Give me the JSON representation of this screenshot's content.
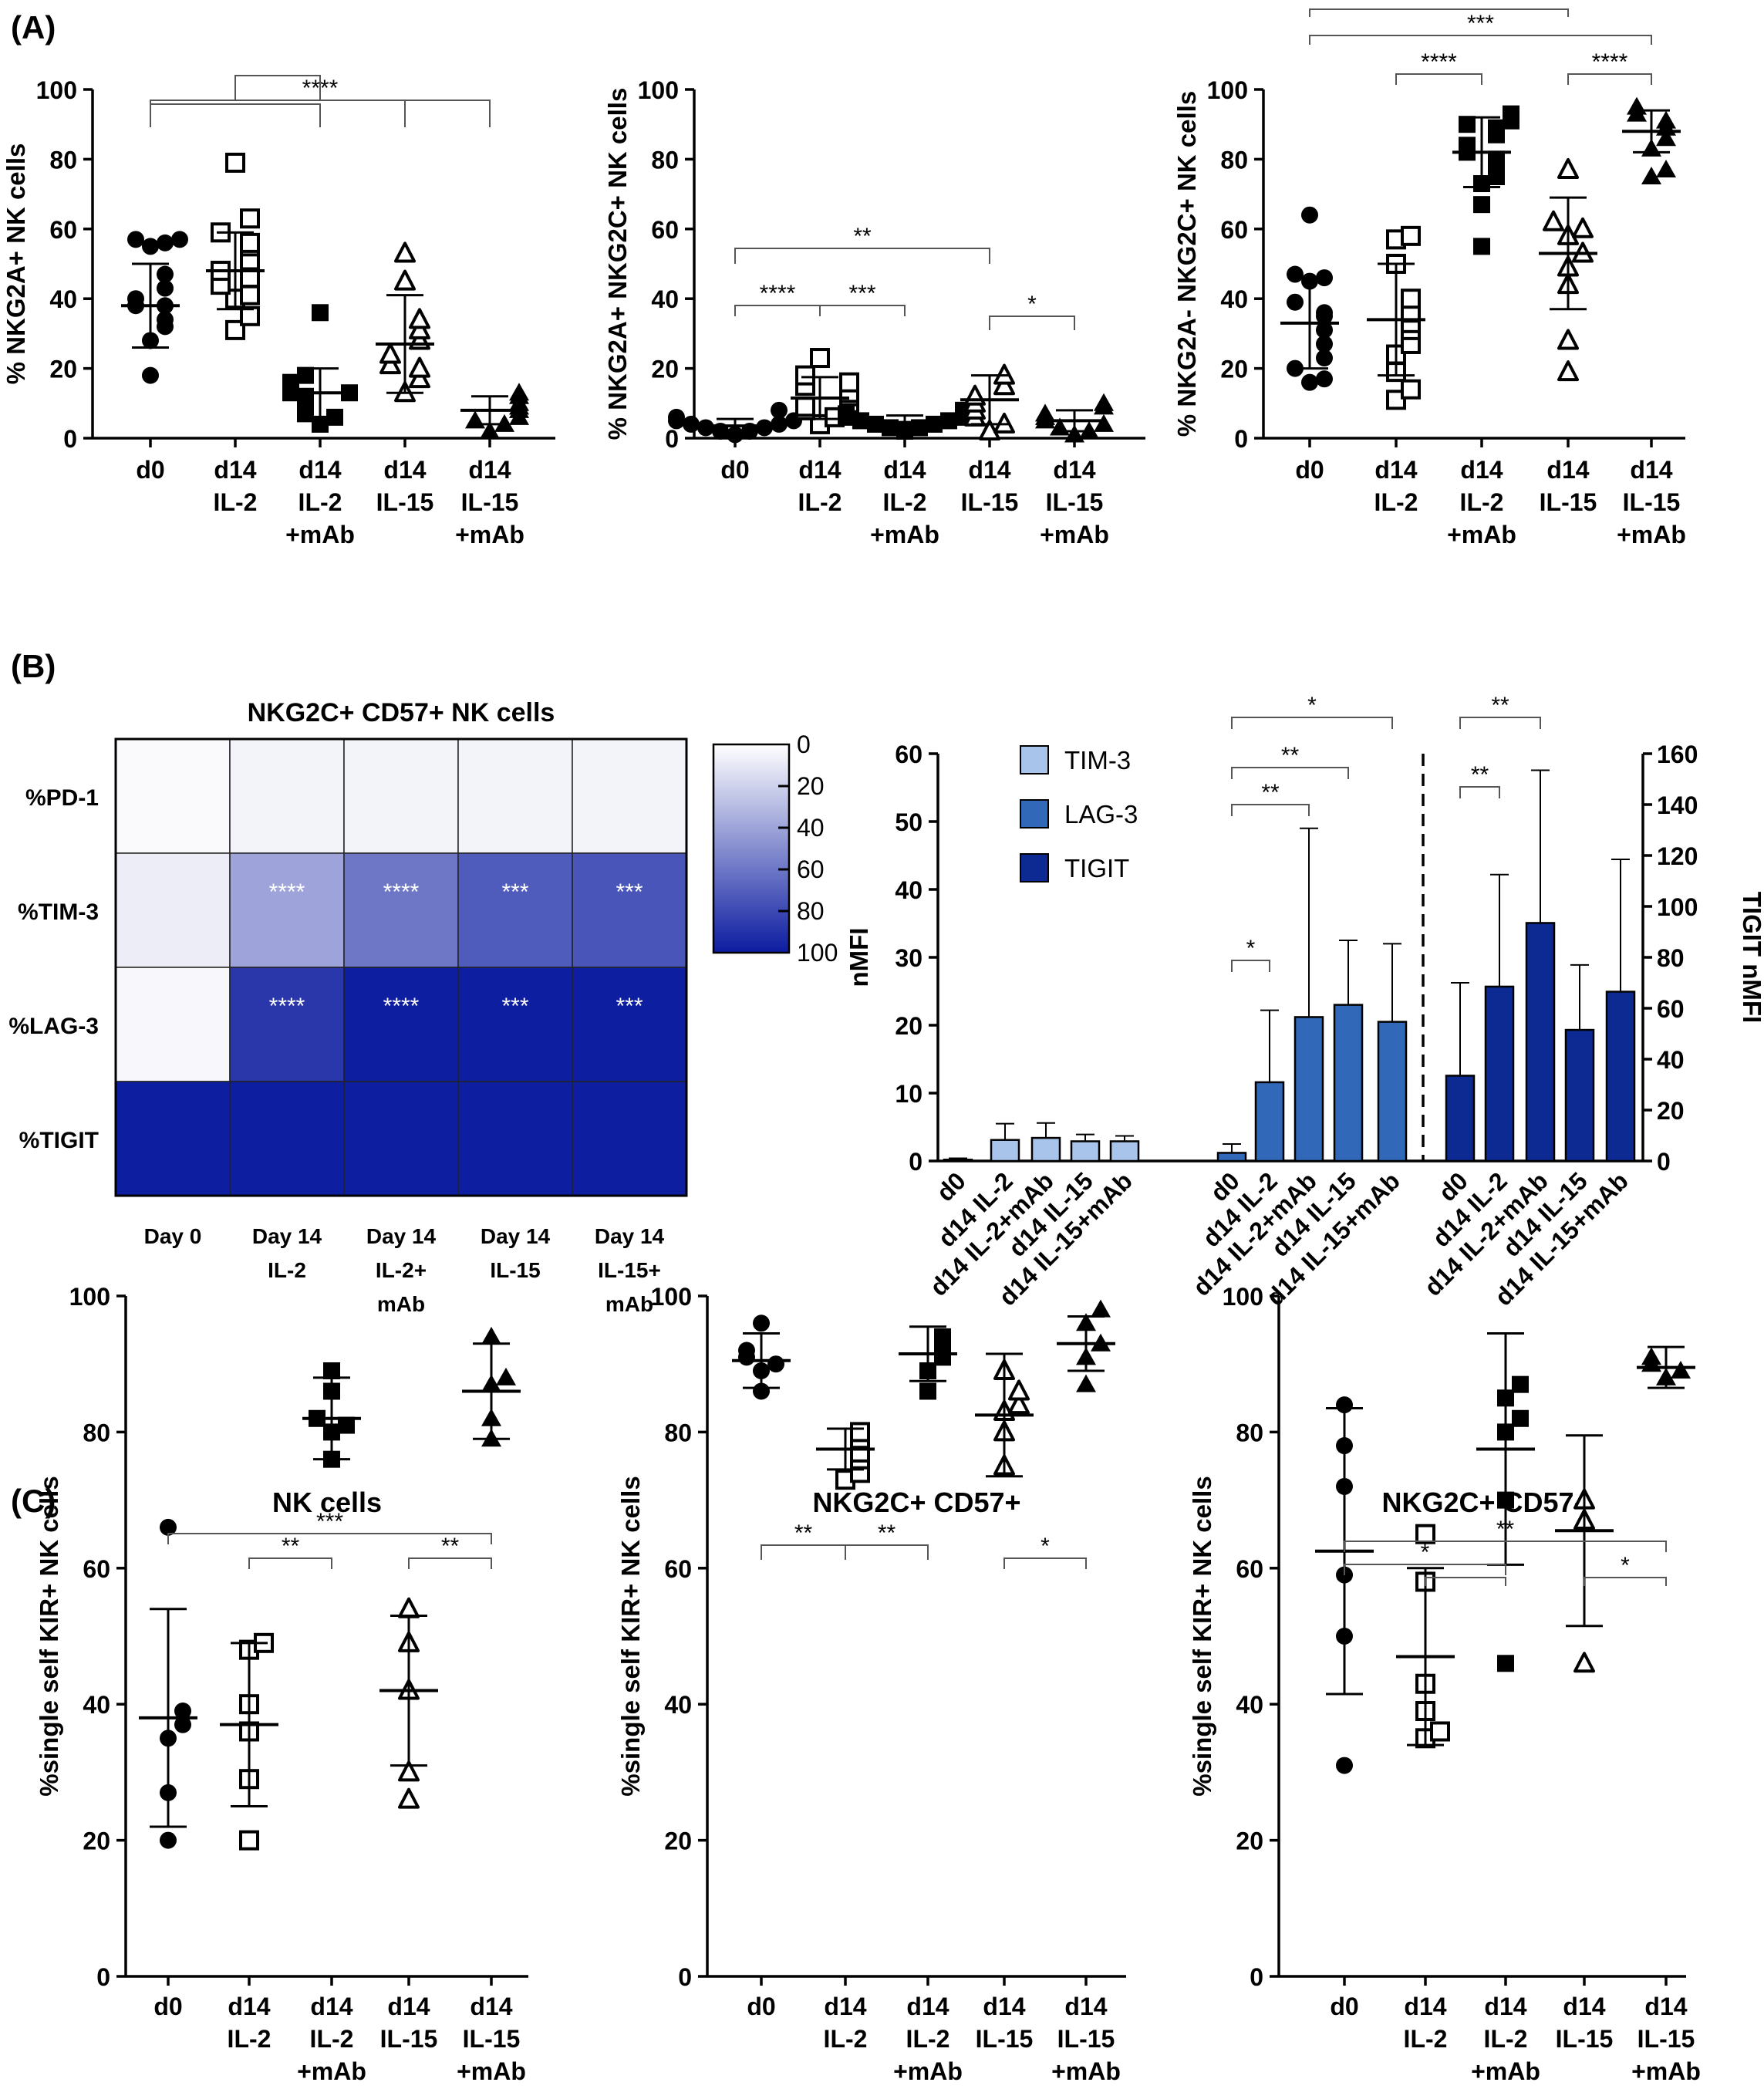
{
  "colors": {
    "tim3": "#A9C4EA",
    "lag3": "#3268B8",
    "tigit": "#0C2A92",
    "heat_max": "#0C1CA0",
    "heat_min": "#FFFFFF"
  },
  "panel_labels": [
    "(A)",
    "(B)",
    "(C)"
  ],
  "chart_data": [
    {
      "id": "A1",
      "type": "scatter",
      "title": "",
      "ylabel": "% NKG2A+ NK cells",
      "ylim": [
        0,
        100
      ],
      "yticks": [
        "0",
        "20",
        "40",
        "60",
        "80",
        "100"
      ],
      "categories": [
        [
          "d0"
        ],
        [
          "d14",
          "IL-2"
        ],
        [
          "d14",
          "IL-2",
          "+mAb"
        ],
        [
          "d14",
          "IL-15"
        ],
        [
          "d14",
          "IL-15",
          "+mAb"
        ]
      ],
      "markers": [
        "filled-circle",
        "open-square",
        "filled-square",
        "open-triangle",
        "filled-triangle"
      ],
      "points": [
        [
          18,
          28,
          32,
          34,
          38,
          38,
          40,
          43,
          47,
          55,
          56,
          57,
          57
        ],
        [
          31,
          35,
          40,
          41,
          44,
          46,
          48,
          51,
          55,
          56,
          59,
          63,
          79
        ],
        [
          4,
          6,
          7,
          9,
          11,
          12,
          13,
          13,
          14,
          16,
          18,
          36
        ],
        [
          13,
          17,
          20,
          21,
          24,
          28,
          31,
          34,
          45,
          53
        ],
        [
          2,
          4,
          5,
          6,
          8,
          9,
          10,
          12,
          13
        ]
      ],
      "means": [
        38,
        48,
        13,
        27,
        8
      ],
      "sd": [
        12,
        11,
        7,
        14,
        4
      ],
      "significance": [
        {
          "from": 0,
          "to": 4,
          "label": "****"
        },
        {
          "from": 1,
          "to": 2,
          "label": ""
        },
        {
          "from": 0,
          "to": 2,
          "label": ""
        },
        {
          "from": 3,
          "to": 4,
          "label": ""
        }
      ]
    },
    {
      "id": "A2",
      "type": "scatter",
      "title": "",
      "ylabel": "% NKG2A+ NKG2C+ NK cells",
      "ylim": [
        0,
        100
      ],
      "yticks": [
        "0",
        "20",
        "40",
        "60",
        "80",
        "100"
      ],
      "categories": [
        [
          "d0"
        ],
        [
          "d14",
          "IL-2"
        ],
        [
          "d14",
          "IL-2",
          "+mAb"
        ],
        [
          "d14",
          "IL-15"
        ],
        [
          "d14",
          "IL-15",
          "+mAb"
        ]
      ],
      "markers": [
        "filled-circle",
        "open-square",
        "filled-square",
        "open-triangle",
        "filled-triangle"
      ],
      "points": [
        [
          1,
          2,
          2,
          3,
          3,
          4,
          4,
          5,
          5,
          6,
          8
        ],
        [
          4,
          6,
          8,
          9,
          10,
          12,
          13,
          15,
          16,
          18,
          23
        ],
        [
          2,
          3,
          3,
          4,
          4,
          5,
          5,
          6,
          6,
          7,
          8
        ],
        [
          2,
          4,
          6,
          8,
          10,
          12,
          15,
          18
        ],
        [
          1,
          2,
          3,
          4,
          5,
          6,
          7,
          9,
          10
        ]
      ],
      "means": [
        3.5,
        11.5,
        4.5,
        11,
        5
      ],
      "sd": [
        2,
        6,
        2,
        7,
        3
      ],
      "significance": [
        {
          "from": 0,
          "to": 3,
          "label": "**"
        },
        {
          "from": 0,
          "to": 1,
          "label": "****"
        },
        {
          "from": 1,
          "to": 2,
          "label": "***"
        },
        {
          "from": 3,
          "to": 4,
          "label": "*"
        }
      ]
    },
    {
      "id": "A3",
      "type": "scatter",
      "title": "",
      "ylabel": "% NKG2A- NKG2C+ NK cells",
      "ylim": [
        0,
        100
      ],
      "yticks": [
        "0",
        "20",
        "40",
        "60",
        "80",
        "100"
      ],
      "categories": [
        [
          "d0"
        ],
        [
          "d14",
          "IL-2"
        ],
        [
          "d14",
          "IL-2",
          "+mAb"
        ],
        [
          "d14",
          "IL-15"
        ],
        [
          "d14",
          "IL-15",
          "+mAb"
        ]
      ],
      "markers": [
        "filled-circle",
        "open-square",
        "filled-square",
        "open-triangle",
        "filled-triangle"
      ],
      "points": [
        [
          16,
          17,
          20,
          23,
          27,
          31,
          35,
          36,
          39,
          45,
          46,
          47,
          64
        ],
        [
          11,
          14,
          19,
          24,
          27,
          31,
          33,
          36,
          40,
          50,
          57,
          58
        ],
        [
          55,
          67,
          73,
          75,
          78,
          80,
          82,
          84,
          87,
          89,
          90,
          91,
          93
        ],
        [
          19,
          28,
          44,
          49,
          53,
          58,
          60,
          62,
          77
        ],
        [
          75,
          77,
          83,
          86,
          89,
          91,
          93,
          95
        ]
      ],
      "means": [
        33,
        34,
        82,
        53,
        88
      ],
      "sd": [
        13,
        16,
        10,
        16,
        6
      ],
      "significance": [
        {
          "from": 0,
          "to": 3,
          "label": "**"
        },
        {
          "from": 0,
          "to": 4,
          "label": "***"
        },
        {
          "from": 1,
          "to": 2,
          "label": "****"
        },
        {
          "from": 3,
          "to": 4,
          "label": "****"
        }
      ]
    },
    {
      "id": "B1",
      "type": "heatmap",
      "title": "NKG2C+ CD57+ NK cells",
      "rows": [
        "%PD-1",
        "%TIM-3",
        "%LAG-3",
        "%TIGIT"
      ],
      "columns": [
        [
          "Day 0"
        ],
        [
          "Day 14",
          "IL-2"
        ],
        [
          "Day 14",
          "IL-2+",
          "mAb"
        ],
        [
          "Day 14",
          "IL-15"
        ],
        [
          "Day 14",
          "IL-15+",
          "mAb"
        ]
      ],
      "values": [
        [
          2,
          5,
          5,
          5,
          5
        ],
        [
          8,
          40,
          60,
          72,
          75
        ],
        [
          3,
          88,
          99,
          99,
          99
        ],
        [
          99,
          99,
          99,
          99,
          99
        ]
      ],
      "annotations": [
        [
          "",
          "",
          "",
          "",
          ""
        ],
        [
          "",
          "****",
          "****",
          "***",
          "***"
        ],
        [
          "",
          "****",
          "****",
          "***",
          "***"
        ],
        [
          "",
          "",
          "",
          "",
          ""
        ]
      ],
      "colorbar": {
        "range": [
          0,
          100
        ],
        "ticks": [
          "0",
          "20",
          "40",
          "60",
          "80",
          "100"
        ]
      }
    },
    {
      "id": "B2",
      "type": "bar",
      "title": "",
      "ylabel": "nMFI",
      "y2label": "TIGIT nMFI",
      "ylim": [
        0,
        60
      ],
      "y2lim": [
        0,
        160
      ],
      "yticks": [
        "0",
        "10",
        "20",
        "30",
        "40",
        "50",
        "60"
      ],
      "y2ticks": [
        "0",
        "20",
        "40",
        "60",
        "80",
        "100",
        "120",
        "140",
        "160"
      ],
      "categories": [
        "d0",
        "d14 IL-2",
        "d14 IL-2+mAb",
        "d14 IL-15",
        "d14 IL-15+mAb"
      ],
      "series": [
        {
          "name": "TIM-3",
          "axis": "left",
          "values": [
            0.2,
            3.1,
            3.4,
            2.9,
            2.9
          ],
          "sd": [
            0.2,
            2.4,
            2.2,
            1.0,
            0.8
          ]
        },
        {
          "name": "LAG-3",
          "axis": "left",
          "values": [
            1.2,
            11.6,
            21.2,
            23.0,
            20.5
          ],
          "sd": [
            1.3,
            10.6,
            27.8,
            9.5,
            11.5
          ]
        },
        {
          "name": "TIGIT",
          "axis": "right",
          "values": [
            33.5,
            68.5,
            93.5,
            51.5,
            66.5
          ],
          "sd": [
            36.5,
            44,
            60,
            25.5,
            52
          ]
        }
      ],
      "significance": [
        {
          "series": "LAG-3",
          "from": 0,
          "to": 4,
          "label": "*"
        },
        {
          "series": "LAG-3",
          "from": 0,
          "to": 3,
          "label": "**"
        },
        {
          "series": "LAG-3",
          "from": 0,
          "to": 2,
          "label": "**"
        },
        {
          "series": "LAG-3",
          "from": 0,
          "to": 1,
          "label": "*"
        },
        {
          "series": "TIGIT",
          "from": 0,
          "to": 2,
          "label": "**"
        },
        {
          "series": "TIGIT",
          "from": 0,
          "to": 1,
          "label": "**"
        }
      ],
      "legend": "top-left"
    },
    {
      "id": "C1",
      "type": "scatter",
      "title": "NK cells",
      "ylabel": "%single self KIR+ NK cells",
      "ylim": [
        0,
        100
      ],
      "yticks": [
        "0",
        "20",
        "40",
        "60",
        "80",
        "100"
      ],
      "categories": [
        [
          "d0"
        ],
        [
          "d14",
          "IL-2"
        ],
        [
          "d14",
          "IL-2",
          "+mAb"
        ],
        [
          "d14",
          "IL-15"
        ],
        [
          "d14",
          "IL-15",
          "+mAb"
        ]
      ],
      "markers": [
        "filled-circle",
        "open-square",
        "filled-square",
        "open-triangle",
        "filled-triangle"
      ],
      "points": [
        [
          20,
          27,
          35,
          37,
          39,
          66
        ],
        [
          20,
          29,
          36,
          40,
          48,
          49
        ],
        [
          76,
          80,
          81,
          82,
          86,
          89
        ],
        [
          26,
          30,
          42,
          49,
          54
        ],
        [
          79,
          82,
          87,
          88,
          94
        ]
      ],
      "means": [
        38,
        37,
        82,
        42,
        86
      ],
      "sd": [
        16,
        12,
        6,
        11,
        7
      ],
      "significance": [
        {
          "from": 0,
          "to": 4,
          "label": "***"
        },
        {
          "from": 1,
          "to": 2,
          "label": "**"
        },
        {
          "from": 3,
          "to": 4,
          "label": "**"
        }
      ]
    },
    {
      "id": "C2",
      "type": "scatter",
      "title": "NKG2C+ CD57+",
      "ylabel": "%single self KIR+ NK cells",
      "ylim": [
        0,
        100
      ],
      "yticks": [
        "0",
        "20",
        "40",
        "60",
        "80",
        "100"
      ],
      "categories": [
        [
          "d0"
        ],
        [
          "d14",
          "IL-2"
        ],
        [
          "d14",
          "IL-2",
          "+mAb"
        ],
        [
          "d14",
          "IL-15"
        ],
        [
          "d14",
          "IL-15",
          "+mAb"
        ]
      ],
      "markers": [
        "filled-circle",
        "open-square",
        "filled-square",
        "open-triangle",
        "filled-triangle"
      ],
      "points": [
        [
          86,
          89,
          90,
          91,
          92,
          96
        ],
        [
          73,
          74,
          76,
          77,
          79,
          80
        ],
        [
          86,
          89,
          91,
          93,
          94
        ],
        [
          75,
          80,
          83,
          84,
          86,
          89
        ],
        [
          87,
          91,
          93,
          96,
          98
        ]
      ],
      "means": [
        90.5,
        77.5,
        91.5,
        82.5,
        93
      ],
      "sd": [
        4,
        3,
        4,
        9,
        4
      ],
      "significance": [
        {
          "from": 0,
          "to": 1,
          "label": "**"
        },
        {
          "from": 1,
          "to": 2,
          "label": "**"
        },
        {
          "from": 3,
          "to": 4,
          "label": "*"
        }
      ]
    },
    {
      "id": "C3",
      "type": "scatter",
      "title": "NKG2C+ CD57-",
      "ylabel": "%single self KIR+ NK cells",
      "ylim": [
        0,
        100
      ],
      "yticks": [
        "0",
        "20",
        "40",
        "60",
        "80",
        "100"
      ],
      "categories": [
        [
          "d0"
        ],
        [
          "d14",
          "IL-2"
        ],
        [
          "d14",
          "IL-2",
          "+mAb"
        ],
        [
          "d14",
          "IL-15"
        ],
        [
          "d14",
          "IL-15",
          "+mAb"
        ]
      ],
      "markers": [
        "filled-circle",
        "open-square",
        "filled-square",
        "open-triangle",
        "filled-triangle"
      ],
      "points": [
        [
          31,
          50,
          59,
          72,
          78,
          84
        ],
        [
          35,
          36,
          39,
          43,
          58,
          65
        ],
        [
          46,
          70,
          80,
          82,
          85,
          87
        ],
        [
          46,
          67,
          70
        ],
        [
          88,
          89,
          90,
          91
        ]
      ],
      "means": [
        62.5,
        47,
        77.5,
        65.5,
        89.5
      ],
      "sd": [
        21,
        13,
        17,
        14,
        3
      ],
      "significance": [
        {
          "from": 0,
          "to": 4,
          "label": "**"
        },
        {
          "from": 0,
          "to": 2,
          "label": "*"
        },
        {
          "from": 1,
          "to": 2,
          "label": ""
        },
        {
          "from": 3,
          "to": 4,
          "label": "*"
        }
      ]
    }
  ]
}
